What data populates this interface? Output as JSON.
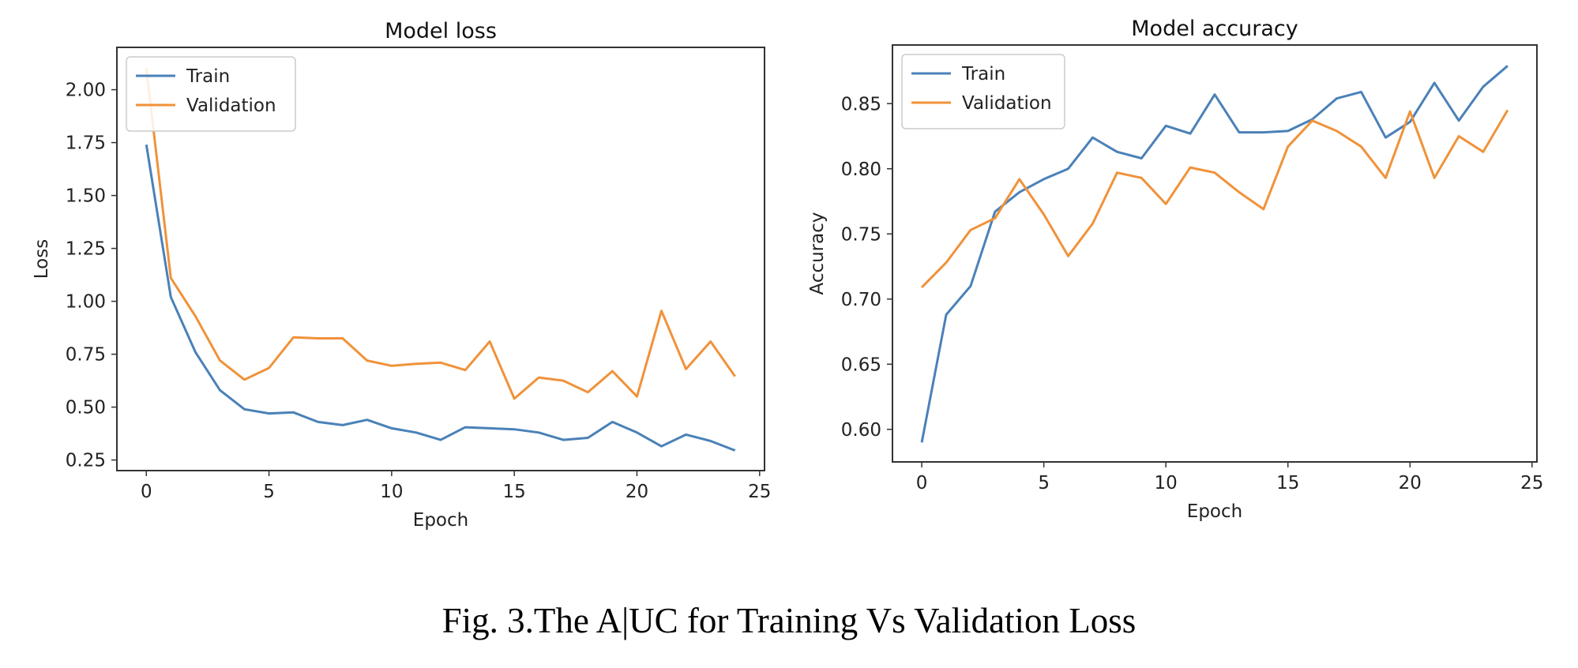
{
  "caption": "Fig. 3.The A|UC for Training Vs Validation Loss",
  "colors": {
    "train": "#4a81b8",
    "validation": "#f0923a"
  },
  "chart_data": [
    {
      "type": "line",
      "title": "Model loss",
      "xlabel": "Epoch",
      "ylabel": "Loss",
      "xlim": [
        -1.2,
        25.2
      ],
      "ylim": [
        0.2,
        2.2
      ],
      "xticks": [
        0,
        5,
        10,
        15,
        20,
        25
      ],
      "xtick_labels": [
        "0",
        "5",
        "10",
        "15",
        "20",
        "25"
      ],
      "yticks": [
        0.25,
        0.5,
        0.75,
        1.0,
        1.25,
        1.5,
        1.75,
        2.0
      ],
      "ytick_labels": [
        "0.25",
        "0.50",
        "0.75",
        "1.00",
        "1.25",
        "1.50",
        "1.75",
        "2.00"
      ],
      "grid": false,
      "legend": "upper left",
      "x": [
        0,
        1,
        2,
        3,
        4,
        5,
        6,
        7,
        8,
        9,
        10,
        11,
        12,
        13,
        14,
        15,
        16,
        17,
        18,
        19,
        20,
        21,
        22,
        23,
        24
      ],
      "series": [
        {
          "name": "Train",
          "values": [
            1.74,
            1.02,
            0.76,
            0.58,
            0.49,
            0.47,
            0.475,
            0.43,
            0.415,
            0.44,
            0.4,
            0.38,
            0.345,
            0.405,
            0.4,
            0.395,
            0.38,
            0.345,
            0.355,
            0.43,
            0.38,
            0.315,
            0.37,
            0.34,
            0.295
          ]
        },
        {
          "name": "Validation",
          "values": [
            2.1,
            1.11,
            0.93,
            0.72,
            0.63,
            0.685,
            0.83,
            0.825,
            0.825,
            0.72,
            0.695,
            0.705,
            0.71,
            0.675,
            0.81,
            0.54,
            0.64,
            0.625,
            0.57,
            0.67,
            0.55,
            0.955,
            0.68,
            0.81,
            0.645
          ]
        }
      ]
    },
    {
      "type": "line",
      "title": "Model accuracy",
      "xlabel": "Epoch",
      "ylabel": "Accuracy",
      "xlim": [
        -1.2,
        25.2
      ],
      "ylim": [
        0.575,
        0.895
      ],
      "xticks": [
        0,
        5,
        10,
        15,
        20,
        25
      ],
      "xtick_labels": [
        "0",
        "5",
        "10",
        "15",
        "20",
        "25"
      ],
      "yticks": [
        0.6,
        0.65,
        0.7,
        0.75,
        0.8,
        0.85
      ],
      "ytick_labels": [
        "0.60",
        "0.65",
        "0.70",
        "0.75",
        "0.80",
        "0.85"
      ],
      "grid": false,
      "legend": "upper left",
      "x": [
        0,
        1,
        2,
        3,
        4,
        5,
        6,
        7,
        8,
        9,
        10,
        11,
        12,
        13,
        14,
        15,
        16,
        17,
        18,
        19,
        20,
        21,
        22,
        23,
        24
      ],
      "series": [
        {
          "name": "Train",
          "values": [
            0.59,
            0.688,
            0.71,
            0.767,
            0.782,
            0.792,
            0.8,
            0.824,
            0.813,
            0.808,
            0.833,
            0.827,
            0.857,
            0.828,
            0.828,
            0.829,
            0.838,
            0.854,
            0.859,
            0.824,
            0.836,
            0.866,
            0.837,
            0.863,
            0.879
          ]
        },
        {
          "name": "Validation",
          "values": [
            0.709,
            0.728,
            0.753,
            0.762,
            0.792,
            0.765,
            0.733,
            0.758,
            0.797,
            0.793,
            0.773,
            0.801,
            0.797,
            0.782,
            0.769,
            0.817,
            0.837,
            0.829,
            0.817,
            0.793,
            0.844,
            0.793,
            0.825,
            0.813,
            0.845
          ]
        }
      ]
    }
  ]
}
